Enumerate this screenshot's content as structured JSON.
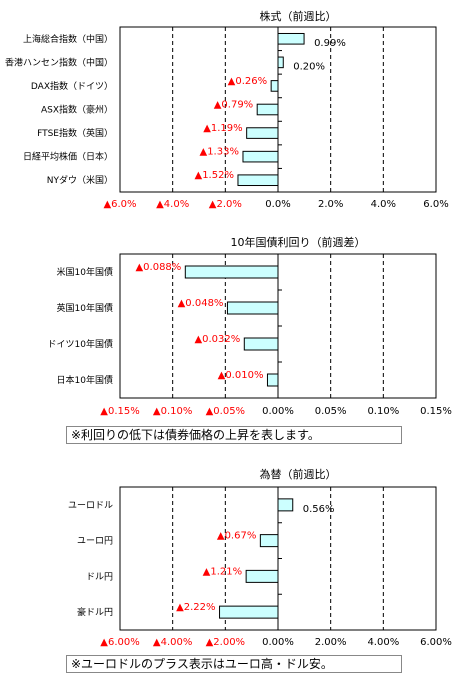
{
  "colors": {
    "bar_fill": "#ccffff",
    "bar_stroke": "#000000",
    "negative_text": "#ff0000",
    "positive_text": "#000000"
  },
  "chart_data": [
    {
      "type": "bar",
      "orientation": "horizontal",
      "title": "株式（前週比）",
      "categories": [
        "上海総合指数（中国）",
        "香港ハンセン指数（中国）",
        "DAX指数（ドイツ）",
        "ASX指数（豪州）",
        "FTSE指数（英国）",
        "日経平均株価（日本）",
        "NYダウ（米国）"
      ],
      "values": [
        0.99,
        0.2,
        -0.26,
        -0.79,
        -1.19,
        -1.33,
        -1.52
      ],
      "data_labels": [
        "0.99%",
        "0.20%",
        "▲0.26%",
        "▲0.79%",
        "▲1.19%",
        "▲1.33%",
        "▲1.52%"
      ],
      "xlim": [
        -6,
        6
      ],
      "x_ticks": [
        -6,
        -4,
        -2,
        0,
        2,
        4,
        6
      ],
      "x_tick_labels": [
        "▲6.0%",
        "▲4.0%",
        "▲2.0%",
        "0.0%",
        "2.0%",
        "4.0%",
        "6.0%"
      ],
      "grid": "vertical-dashed"
    },
    {
      "type": "bar",
      "orientation": "horizontal",
      "title": "10年国債利回り（前週差）",
      "categories": [
        "米国10年国債",
        "英国10年国債",
        "ドイツ10年国債",
        "日本10年国債"
      ],
      "values": [
        -0.088,
        -0.048,
        -0.032,
        -0.01
      ],
      "data_labels": [
        "▲0.088%",
        "▲0.048%",
        "▲0.032%",
        "▲0.010%"
      ],
      "xlim": [
        -0.15,
        0.15
      ],
      "x_ticks": [
        -0.15,
        -0.1,
        -0.05,
        0,
        0.05,
        0.1,
        0.15
      ],
      "x_tick_labels": [
        "▲0.15%",
        "▲0.10%",
        "▲0.05%",
        "0.00%",
        "0.05%",
        "0.10%",
        "0.15%"
      ],
      "grid": "vertical-dashed",
      "note": "※利回りの低下は債券価格の上昇を表します。"
    },
    {
      "type": "bar",
      "orientation": "horizontal",
      "title": "為替（前週比）",
      "categories": [
        "ユーロドル",
        "ユーロ円",
        "ドル円",
        "豪ドル円"
      ],
      "values": [
        0.56,
        -0.67,
        -1.21,
        -2.22
      ],
      "data_labels": [
        "0.56%",
        "▲0.67%",
        "▲1.21%",
        "▲2.22%"
      ],
      "xlim": [
        -6,
        6
      ],
      "x_ticks": [
        -6,
        -4,
        -2,
        0,
        2,
        4,
        6
      ],
      "x_tick_labels": [
        "▲6.00%",
        "▲4.00%",
        "▲2.00%",
        "0.00%",
        "2.00%",
        "4.00%",
        "6.00%"
      ],
      "grid": "vertical-dashed",
      "note": "※ユーロドルのプラス表示はユーロ高・ドル安。"
    }
  ]
}
